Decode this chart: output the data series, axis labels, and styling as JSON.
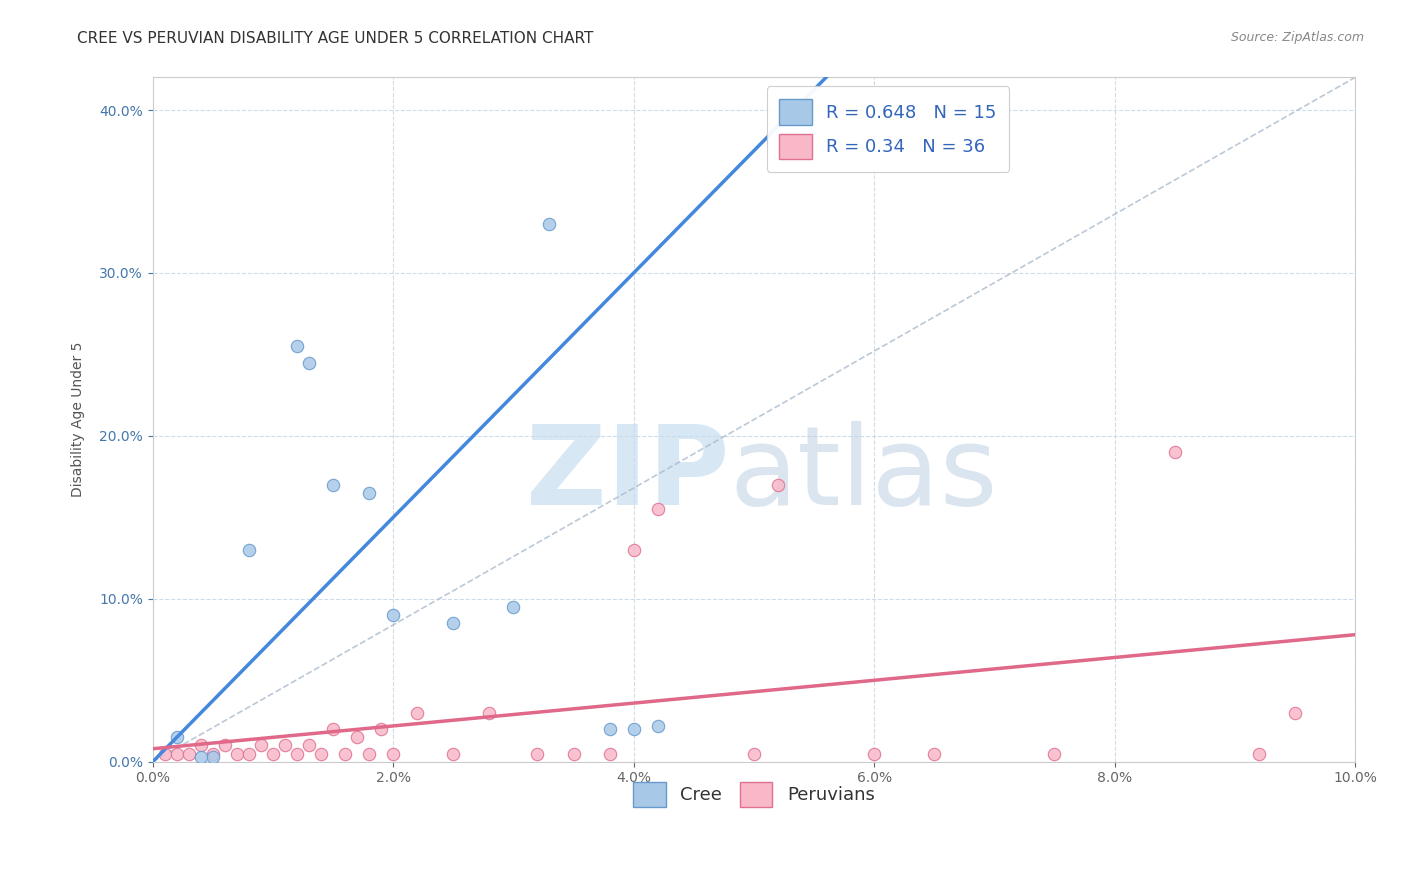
{
  "title": "CREE VS PERUVIAN DISABILITY AGE UNDER 5 CORRELATION CHART",
  "source": "Source: ZipAtlas.com",
  "ylabel": "Disability Age Under 5",
  "xlabel": "",
  "xlim": [
    0.0,
    0.1
  ],
  "ylim": [
    0.0,
    0.42
  ],
  "xticks": [
    0.0,
    0.02,
    0.04,
    0.06,
    0.08,
    0.1
  ],
  "yticks": [
    0.0,
    0.1,
    0.2,
    0.3,
    0.4
  ],
  "cree_R": 0.648,
  "cree_N": 15,
  "peruvian_R": 0.34,
  "peruvian_N": 36,
  "cree_color": "#a8c8e8",
  "peruvian_color": "#f8b8c8",
  "cree_edge_color": "#6699cc",
  "peruvian_edge_color": "#e07090",
  "cree_line_color": "#4488dd",
  "peruvian_line_color": "#e06888",
  "ref_line_color": "#aabbcc",
  "watermark_zip_color": "#c8ddf0",
  "watermark_atlas_color": "#b8cce0",
  "cree_points_x": [
    0.002,
    0.004,
    0.005,
    0.008,
    0.012,
    0.013,
    0.015,
    0.018,
    0.02,
    0.025,
    0.03,
    0.033,
    0.038,
    0.04,
    0.042
  ],
  "cree_points_y": [
    0.015,
    0.003,
    0.003,
    0.13,
    0.255,
    0.245,
    0.17,
    0.165,
    0.09,
    0.085,
    0.095,
    0.33,
    0.02,
    0.02,
    0.022
  ],
  "peruvian_points_x": [
    0.001,
    0.002,
    0.003,
    0.004,
    0.005,
    0.006,
    0.007,
    0.008,
    0.009,
    0.01,
    0.011,
    0.012,
    0.013,
    0.014,
    0.015,
    0.016,
    0.017,
    0.018,
    0.019,
    0.02,
    0.022,
    0.025,
    0.028,
    0.032,
    0.035,
    0.038,
    0.04,
    0.042,
    0.05,
    0.052,
    0.06,
    0.065,
    0.075,
    0.085,
    0.092,
    0.095
  ],
  "peruvian_points_y": [
    0.005,
    0.005,
    0.005,
    0.01,
    0.005,
    0.01,
    0.005,
    0.005,
    0.01,
    0.005,
    0.01,
    0.005,
    0.01,
    0.005,
    0.02,
    0.005,
    0.015,
    0.005,
    0.02,
    0.005,
    0.03,
    0.005,
    0.03,
    0.005,
    0.005,
    0.005,
    0.13,
    0.155,
    0.005,
    0.17,
    0.005,
    0.005,
    0.005,
    0.19,
    0.005,
    0.03
  ],
  "title_fontsize": 11,
  "tick_label_fontsize": 10,
  "axis_label_fontsize": 10,
  "legend_fontsize": 13,
  "source_fontsize": 9,
  "background_color": "#ffffff",
  "grid_color": "#c8d8e8",
  "marker_size": 80,
  "cree_line_intercept": 0.0,
  "cree_line_slope": 7.5,
  "peruvian_line_intercept": 0.008,
  "peruvian_line_slope": 0.7
}
